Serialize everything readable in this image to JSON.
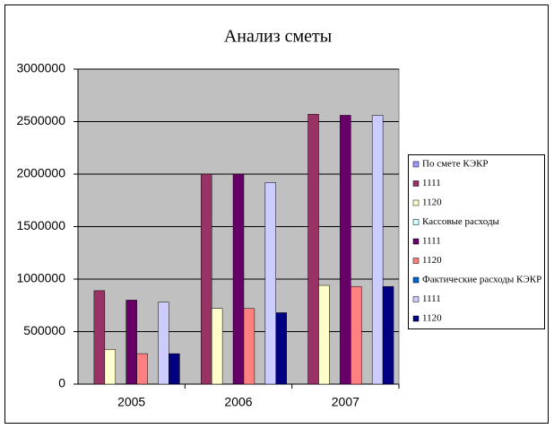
{
  "chart_data": {
    "type": "bar",
    "title": "Анализ сметы",
    "categories": [
      "2005",
      "2006",
      "2007"
    ],
    "series": [
      {
        "name": "По смете КЭКР",
        "color": "#9999ff",
        "values": [
          0,
          0,
          0
        ]
      },
      {
        "name": "1111",
        "color": "#993366",
        "values": [
          890000,
          2000000,
          2570000
        ]
      },
      {
        "name": "1120",
        "color": "#ffffcc",
        "values": [
          330000,
          720000,
          940000
        ]
      },
      {
        "name": "Кассовые расходы",
        "color": "#ccffff",
        "values": [
          0,
          0,
          0
        ]
      },
      {
        "name": "1111",
        "color": "#660066",
        "values": [
          800000,
          2000000,
          2560000
        ]
      },
      {
        "name": "1120",
        "color": "#ff8080",
        "values": [
          290000,
          720000,
          930000
        ]
      },
      {
        "name": "Фактические расходы КЭКР",
        "color": "#0066cc",
        "values": [
          0,
          0,
          0
        ]
      },
      {
        "name": "1111",
        "color": "#ccccff",
        "values": [
          780000,
          1920000,
          2560000
        ]
      },
      {
        "name": "1120",
        "color": "#000080",
        "values": [
          290000,
          680000,
          930000
        ]
      }
    ],
    "ylim": [
      0,
      3000000
    ],
    "yticks": [
      0,
      500000,
      1000000,
      1500000,
      2000000,
      2500000,
      3000000
    ],
    "grid": true,
    "legend": "right",
    "plot_background": "#c0c0c0"
  }
}
